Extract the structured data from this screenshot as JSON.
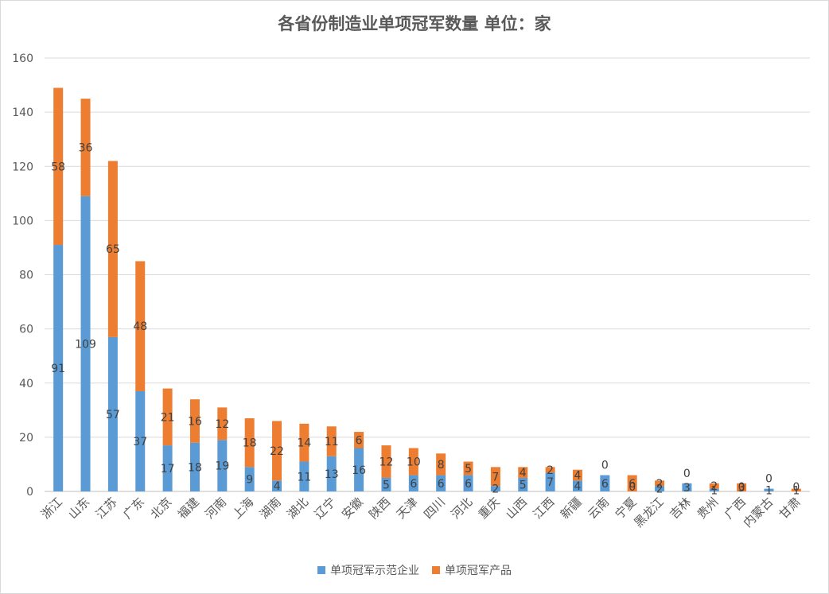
{
  "chart_data": {
    "type": "bar",
    "stacked": true,
    "title": "各省份制造业单项冠军数量  单位：家",
    "xlabel": "",
    "ylabel": "",
    "ylim": [
      0,
      160
    ],
    "yticks": [
      0,
      20,
      40,
      60,
      80,
      100,
      120,
      140,
      160
    ],
    "grid": true,
    "legend_position": "bottom",
    "categories": [
      "浙江",
      "山东",
      "江苏",
      "广东",
      "北京",
      "福建",
      "河南",
      "上海",
      "湖南",
      "湖北",
      "辽宁",
      "安徽",
      "陕西",
      "天津",
      "四川",
      "河北",
      "重庆",
      "山西",
      "江西",
      "新疆",
      "云南",
      "宁夏",
      "黑龙江",
      "吉林",
      "贵州",
      "广西",
      "内蒙古",
      "甘肃"
    ],
    "series": [
      {
        "name": "单项冠军示范企业",
        "color": "#5b9bd5",
        "values": [
          91,
          109,
          57,
          37,
          17,
          18,
          19,
          9,
          4,
          11,
          13,
          16,
          5,
          6,
          6,
          6,
          2,
          5,
          7,
          4,
          6,
          0,
          2,
          3,
          1,
          0,
          1,
          0
        ]
      },
      {
        "name": "单项冠军产品",
        "color": "#ed7d31",
        "values": [
          58,
          36,
          65,
          48,
          21,
          16,
          12,
          18,
          22,
          14,
          11,
          6,
          12,
          10,
          8,
          5,
          7,
          4,
          2,
          4,
          0,
          6,
          2,
          0,
          2,
          3,
          0,
          1
        ]
      }
    ]
  }
}
